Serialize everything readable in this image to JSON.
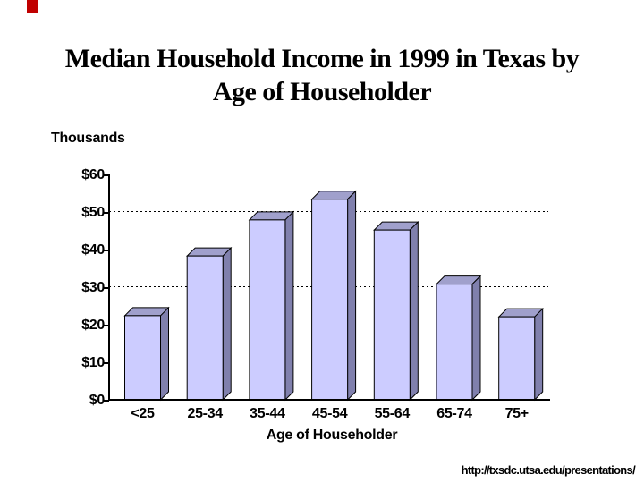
{
  "slide": {
    "title_line1": "Median Household Income in 1999 in Texas by",
    "title_line2": "Age of Householder",
    "corner_mark_color": "#c00000",
    "footer_url": "http://txsdc.utsa.edu/presentations/"
  },
  "chart_data": {
    "type": "bar",
    "title": "Median Household Income in 1999 in Texas by Age of Householder",
    "unit_label": "Thousands",
    "xlabel": "Age of Householder",
    "ylabel": "Thousands",
    "categories": [
      "<25",
      "25-34",
      "35-44",
      "45-54",
      "55-64",
      "65-74",
      "75+"
    ],
    "values": [
      22.4,
      38.3,
      47.9,
      53.4,
      45.2,
      30.8,
      22.1
    ],
    "ylim": [
      0,
      60
    ],
    "y_ticks": [
      {
        "label": "$60",
        "value": 60
      },
      {
        "label": "$50",
        "value": 50
      },
      {
        "label": "$40",
        "value": 40
      },
      {
        "label": "$30",
        "value": 30
      },
      {
        "label": "$20",
        "value": 20
      },
      {
        "label": "$10",
        "value": 10
      },
      {
        "label": "$0",
        "value": 0
      }
    ],
    "gridlines_at": [
      60,
      50,
      30
    ],
    "grid_style": "dotted",
    "legend": "none",
    "bar_face_color": "#ccccff",
    "bar_top_color": "#a0a0cc",
    "bar_side_color": "#8080ad",
    "outline_color": "#000000",
    "axis_color": "#000000"
  }
}
